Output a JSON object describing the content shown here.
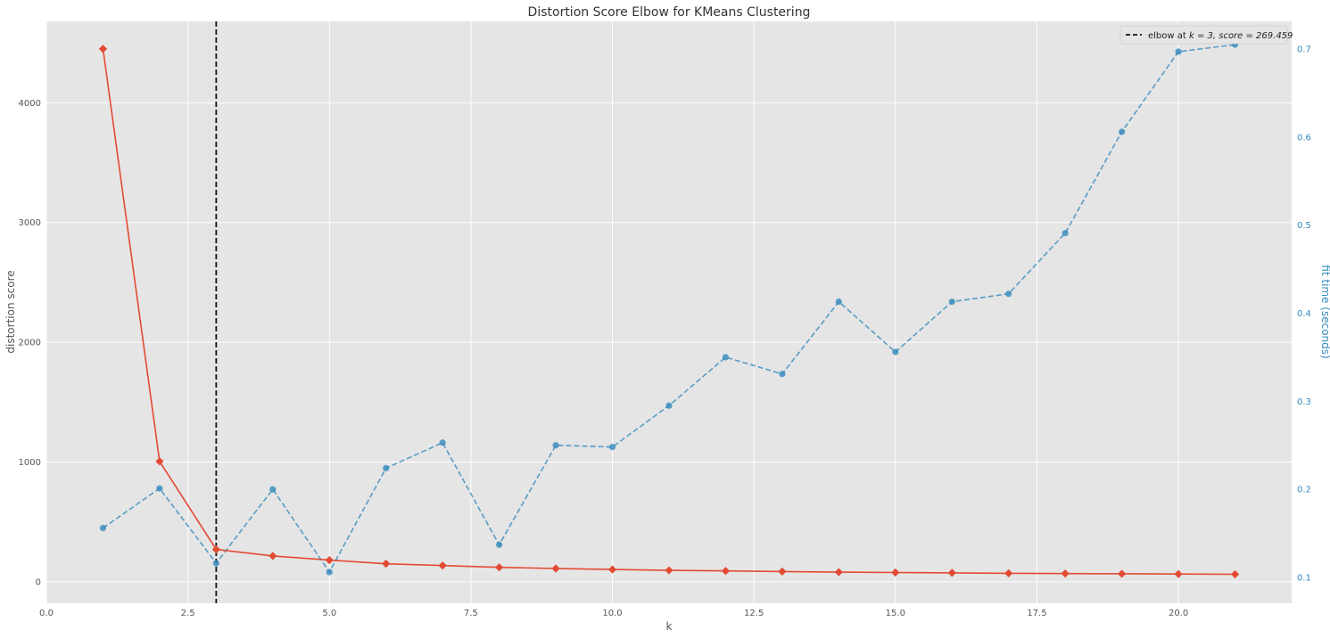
{
  "chart_data": {
    "type": "line",
    "title": "Distortion Score Elbow for KMeans Clustering",
    "xlabel": "k",
    "ylabel": "distortion score",
    "y2label": "fit time (seconds)",
    "xlim": [
      0,
      22
    ],
    "ylim": [
      -180,
      4680
    ],
    "y2lim": [
      0.0706,
      0.7314
    ],
    "xticks": [
      "0.0",
      "2.5",
      "5.0",
      "7.5",
      "10.0",
      "12.5",
      "15.0",
      "17.5",
      "20.0"
    ],
    "xtick_values": [
      0,
      2.5,
      5,
      7.5,
      10,
      12.5,
      15,
      17.5,
      20
    ],
    "yticks": [
      "0",
      "1000",
      "2000",
      "3000",
      "4000"
    ],
    "ytick_values": [
      0,
      1000,
      2000,
      3000,
      4000
    ],
    "y2ticks": [
      "0.1",
      "0.2",
      "0.3",
      "0.4",
      "0.5",
      "0.6",
      "0.7"
    ],
    "y2tick_values": [
      0.1,
      0.2,
      0.3,
      0.4,
      0.5,
      0.6,
      0.7
    ],
    "grid": true,
    "legend_position": "top-right",
    "legend_prefix": "elbow at ",
    "legend_math": "k = 3, score = 269.459",
    "elbow_k": 3,
    "elbow_score": 269.459,
    "k": [
      1,
      2,
      3,
      4,
      5,
      6,
      7,
      8,
      9,
      10,
      11,
      12,
      13,
      14,
      15,
      16,
      17,
      18,
      19,
      20,
      21
    ],
    "distortion": [
      4450,
      1005,
      269.459,
      215,
      180,
      150,
      135,
      120,
      110,
      102,
      95,
      90,
      85,
      80,
      77,
      74,
      70,
      68,
      66,
      64,
      62
    ],
    "fit_time": [
      0.156,
      0.201,
      0.116,
      0.2,
      0.106,
      0.224,
      0.253,
      0.137,
      0.25,
      0.248,
      0.295,
      0.35,
      0.331,
      0.413,
      0.356,
      0.413,
      0.422,
      0.491,
      0.606,
      0.697,
      0.705
    ],
    "colors": {
      "distortion": "#e24a33",
      "fit_time": "#348abd",
      "elbow": "#111111",
      "background": "#e5e5e5",
      "grid": "#ffffff"
    }
  }
}
